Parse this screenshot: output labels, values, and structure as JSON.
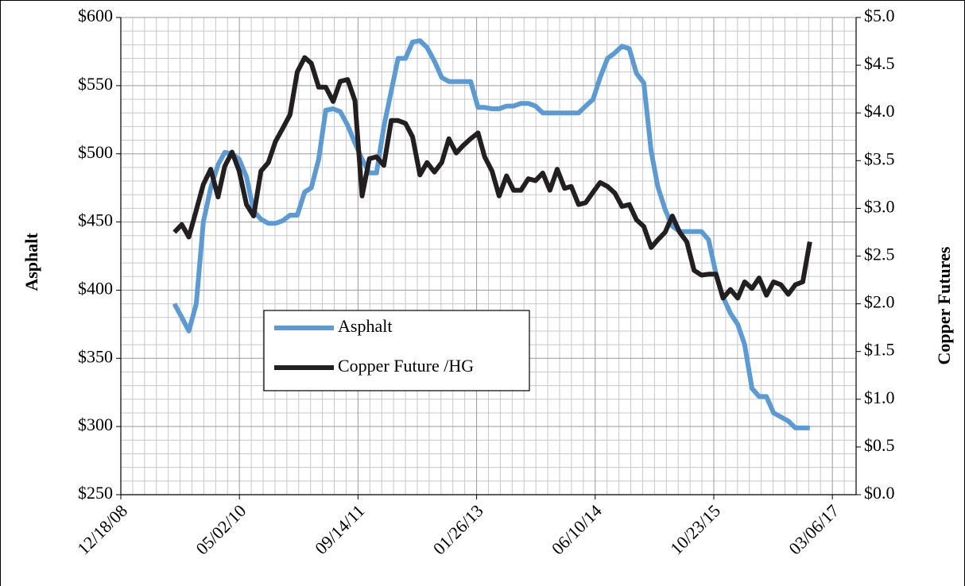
{
  "chart_data": {
    "type": "line",
    "y_label": "Asphalt",
    "y2_label": "Copper Futures",
    "x": [
      "2009-08-01",
      "2009-09-01",
      "2009-10-01",
      "2009-11-01",
      "2009-12-01",
      "2010-01-01",
      "2010-02-01",
      "2010-03-01",
      "2010-04-01",
      "2010-05-01",
      "2010-06-01",
      "2010-07-01",
      "2010-08-01",
      "2010-09-01",
      "2010-10-01",
      "2010-11-01",
      "2010-12-01",
      "2011-01-01",
      "2011-02-01",
      "2011-03-01",
      "2011-04-01",
      "2011-05-01",
      "2011-06-01",
      "2011-07-01",
      "2011-08-01",
      "2011-09-01",
      "2011-10-01",
      "2011-11-01",
      "2011-12-01",
      "2012-01-01",
      "2012-02-01",
      "2012-03-01",
      "2012-04-01",
      "2012-05-01",
      "2012-06-01",
      "2012-07-01",
      "2012-08-01",
      "2012-09-01",
      "2012-10-01",
      "2012-11-01",
      "2012-12-01",
      "2013-01-01",
      "2013-02-01",
      "2013-03-01",
      "2013-04-01",
      "2013-05-01",
      "2013-06-01",
      "2013-07-01",
      "2013-08-01",
      "2013-09-01",
      "2013-10-01",
      "2013-11-01",
      "2013-12-01",
      "2014-01-01",
      "2014-02-01",
      "2014-03-01",
      "2014-04-01",
      "2014-05-01",
      "2014-06-01",
      "2014-07-01",
      "2014-08-01",
      "2014-09-01",
      "2014-10-01",
      "2014-11-01",
      "2014-12-01",
      "2015-01-01",
      "2015-02-01",
      "2015-03-01",
      "2015-04-01",
      "2015-05-01",
      "2015-06-01",
      "2015-07-01",
      "2015-08-01",
      "2015-09-01",
      "2015-10-01",
      "2015-11-01",
      "2015-12-01",
      "2016-01-01",
      "2016-02-01",
      "2016-03-01",
      "2016-04-01",
      "2016-05-01",
      "2016-06-01",
      "2016-07-01",
      "2016-08-01",
      "2016-09-01",
      "2016-10-01",
      "2016-11-01",
      "2016-12-01"
    ],
    "series": [
      {
        "name": "Asphalt",
        "color": "#5b9bd5",
        "axis": "y",
        "values": [
          390,
          380,
          370,
          390,
          450,
          475,
          492,
          501,
          500,
          496,
          483,
          458,
          452,
          449,
          449,
          451,
          455,
          455,
          472,
          475,
          496,
          532,
          533,
          531,
          521,
          508,
          496,
          486,
          486,
          520,
          546,
          570,
          570,
          582,
          583,
          578,
          568,
          556,
          553,
          553,
          553,
          553,
          534,
          534,
          533,
          533,
          535,
          535,
          537,
          537,
          535,
          530,
          530,
          530,
          530,
          530,
          530,
          535,
          540,
          556,
          570,
          574,
          579,
          577,
          559,
          552,
          502,
          476,
          459,
          447,
          443,
          443,
          443,
          443,
          437,
          412,
          395,
          383,
          375,
          360,
          328,
          322,
          322,
          310,
          307,
          304,
          299,
          299,
          299
        ]
      },
      {
        "name": "Copper Future /HG",
        "color": "#231f20",
        "axis": "y2",
        "values": [
          2.75,
          2.83,
          2.7,
          2.98,
          3.25,
          3.41,
          3.12,
          3.44,
          3.59,
          3.39,
          3.04,
          2.92,
          3.39,
          3.48,
          3.7,
          3.84,
          3.98,
          4.43,
          4.58,
          4.52,
          4.27,
          4.27,
          4.12,
          4.33,
          4.35,
          4.13,
          3.13,
          3.52,
          3.54,
          3.45,
          3.92,
          3.92,
          3.89,
          3.75,
          3.35,
          3.48,
          3.38,
          3.48,
          3.73,
          3.58,
          3.66,
          3.73,
          3.79,
          3.54,
          3.39,
          3.13,
          3.34,
          3.19,
          3.19,
          3.31,
          3.29,
          3.37,
          3.19,
          3.41,
          3.21,
          3.23,
          3.04,
          3.06,
          3.17,
          3.27,
          3.23,
          3.16,
          3.02,
          3.04,
          2.88,
          2.81,
          2.59,
          2.67,
          2.75,
          2.92,
          2.75,
          2.65,
          2.35,
          2.3,
          2.31,
          2.31,
          2.06,
          2.15,
          2.06,
          2.23,
          2.16,
          2.27,
          2.09,
          2.23,
          2.2,
          2.1,
          2.2,
          2.23,
          2.65
        ]
      }
    ],
    "xlim": [
      "2008-12-18",
      "2017-06-14"
    ],
    "xticks": [
      {
        "value": "2008-12-18",
        "label": "12/18/08"
      },
      {
        "value": "2010-05-02",
        "label": "05/02/10"
      },
      {
        "value": "2011-09-14",
        "label": "09/14/11"
      },
      {
        "value": "2013-01-26",
        "label": "01/26/13"
      },
      {
        "value": "2014-06-10",
        "label": "06/10/14"
      },
      {
        "value": "2015-10-23",
        "label": "10/23/15"
      },
      {
        "value": "2017-03-06",
        "label": "03/06/17"
      }
    ],
    "ylim": [
      250,
      600
    ],
    "yticks": [
      {
        "value": 250,
        "label": "$250"
      },
      {
        "value": 300,
        "label": "$300"
      },
      {
        "value": 350,
        "label": "$350"
      },
      {
        "value": 400,
        "label": "$400"
      },
      {
        "value": 450,
        "label": "$450"
      },
      {
        "value": 500,
        "label": "$500"
      },
      {
        "value": 550,
        "label": "$550"
      },
      {
        "value": 600,
        "label": "$600"
      }
    ],
    "y2lim": [
      0,
      5
    ],
    "y2ticks": [
      {
        "value": 0,
        "label": "$0.0"
      },
      {
        "value": 0.5,
        "label": "$0.5"
      },
      {
        "value": 1,
        "label": "$1.0"
      },
      {
        "value": 1.5,
        "label": "$1.5"
      },
      {
        "value": 2,
        "label": "$2.0"
      },
      {
        "value": 2.5,
        "label": "$2.5"
      },
      {
        "value": 3,
        "label": "$3.0"
      },
      {
        "value": 3.5,
        "label": "$3.5"
      },
      {
        "value": 4,
        "label": "$4.0"
      },
      {
        "value": 4.5,
        "label": "$4.5"
      },
      {
        "value": 5,
        "label": "$5.0"
      }
    ],
    "grid": true
  }
}
